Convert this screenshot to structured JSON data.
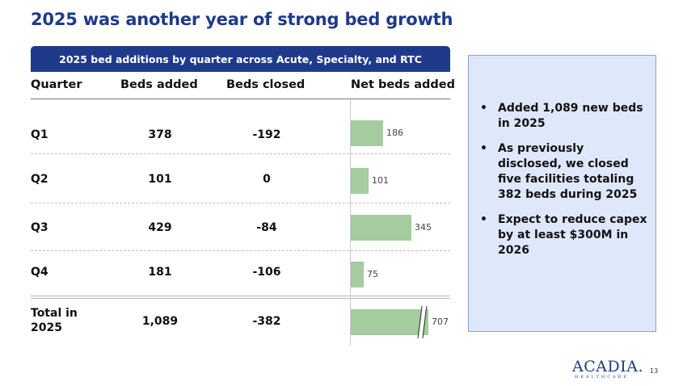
{
  "title": "2025 was another year of strong bed growth",
  "table": {
    "banner": "2025 bed additions by quarter across Acute, Specialty, and RTC",
    "headers": {
      "quarter": "Quarter",
      "added": "Beds added",
      "closed": "Beds closed",
      "net": "Net beds added"
    },
    "rows": [
      {
        "quarter": "Q1",
        "added": "378",
        "closed": "-192",
        "net": "186"
      },
      {
        "quarter": "Q2",
        "added": "101",
        "closed": "0",
        "net": "101"
      },
      {
        "quarter": "Q3",
        "added": "429",
        "closed": "-84",
        "net": "345"
      },
      {
        "quarter": "Q4",
        "added": "181",
        "closed": "-106",
        "net": "75"
      }
    ],
    "total": {
      "line1": "Total in",
      "line2": "2025",
      "added": "1,089",
      "closed": "-382",
      "net": "707"
    }
  },
  "chart_data": {
    "type": "bar",
    "orientation": "horizontal",
    "title": "Net beds added",
    "categories": [
      "Q1",
      "Q2",
      "Q3",
      "Q4",
      "Total in 2025"
    ],
    "values": [
      186,
      101,
      345,
      75,
      707
    ],
    "axis_break_on": "Total in 2025",
    "colors": {
      "bar": "#a4cc9e"
    }
  },
  "panel": {
    "bullets": [
      "Added 1,089 new beds in 2025",
      "As previously disclosed, we closed five facilities totaling 382 beds during 2025",
      "Expect to reduce capex by at least $300M in 2026"
    ]
  },
  "footer": {
    "logo": "ACADIA.",
    "logo_sub": "HEALTHCARE",
    "page": "13"
  },
  "colors": {
    "brand": "#1f3a8a",
    "panel_bg": "#dfe8fb"
  }
}
